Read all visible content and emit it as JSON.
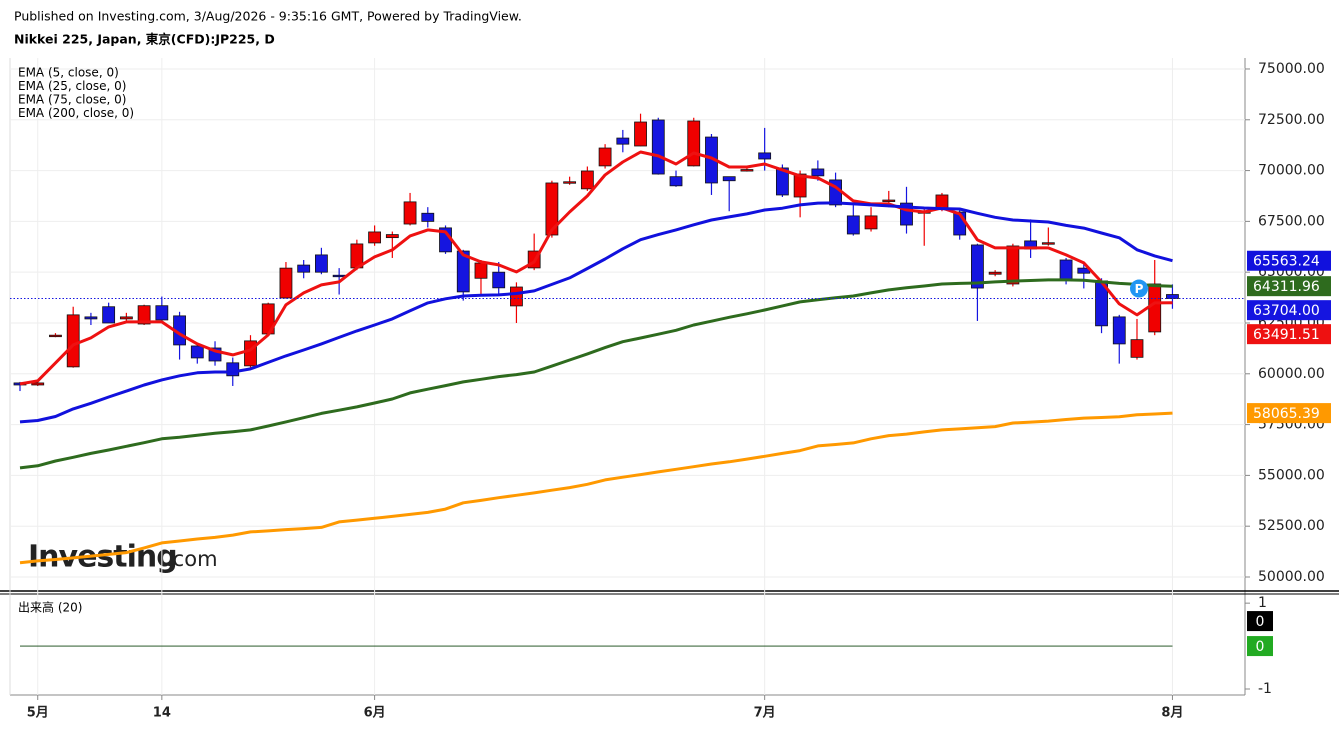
{
  "header": {
    "published": "Published on Investing.com, 3/Aug/2026 - 9:35:16 GMT, Powered by TradingView.",
    "symbol": "Nikkei 225, Japan, 東京(CFD):JP225, D"
  },
  "logo": {
    "brand": "Investing",
    "suffix": ".com"
  },
  "chart_data": {
    "type": "candlestick",
    "categories": [
      null,
      "5月",
      null,
      null,
      null,
      null,
      null,
      null,
      "14",
      null,
      null,
      null,
      null,
      null,
      null,
      null,
      null,
      null,
      null,
      null,
      "6月",
      null,
      null,
      null,
      null,
      null,
      null,
      null,
      null,
      null,
      null,
      null,
      null,
      null,
      null,
      null,
      null,
      null,
      null,
      null,
      null,
      null,
      "7月",
      null,
      null,
      null,
      null,
      null,
      null,
      null,
      null,
      null,
      null,
      null,
      null,
      null,
      null,
      null,
      null,
      null,
      null,
      null,
      null,
      null,
      null,
      "8月"
    ],
    "open": [
      59550,
      59450,
      61850,
      60340,
      62800,
      63300,
      62700,
      62450,
      63350,
      62850,
      61370,
      61270,
      60540,
      60390,
      61960,
      63730,
      65350,
      65850,
      64850,
      65210,
      66440,
      66700,
      67370,
      67900,
      67180,
      66040,
      64700,
      65000,
      63340,
      65210,
      66830,
      69380,
      69100,
      70230,
      71600,
      71210,
      72490,
      69700,
      70230,
      71650,
      69700,
      70050,
      70870,
      70130,
      68700,
      70080,
      69540,
      67770,
      67130,
      68500,
      68400,
      67900,
      68110,
      67960,
      66340,
      64900,
      64420,
      66540,
      66400,
      65600,
      65200,
      64570,
      62800,
      60810,
      62060,
      63900
    ],
    "high": [
      59600,
      59600,
      62000,
      63300,
      63000,
      63500,
      63000,
      63400,
      63800,
      63050,
      61500,
      61600,
      60800,
      61900,
      63500,
      65500,
      65600,
      66200,
      65200,
      66600,
      67300,
      67000,
      68900,
      68200,
      67300,
      66100,
      65600,
      65500,
      64500,
      66900,
      69500,
      69700,
      70200,
      71300,
      72000,
      72800,
      72600,
      70000,
      72600,
      71800,
      69700,
      70150,
      72100,
      70300,
      70000,
      70500,
      69900,
      68300,
      68200,
      69000,
      69200,
      68200,
      68900,
      68100,
      66400,
      65100,
      66400,
      67600,
      67200,
      65700,
      65500,
      64700,
      62900,
      62700,
      65600,
      64400
    ],
    "low": [
      59150,
      59400,
      61800,
      60300,
      62400,
      62500,
      62600,
      62400,
      62600,
      60700,
      60500,
      60400,
      59400,
      60300,
      61900,
      63700,
      64700,
      64900,
      63900,
      65100,
      66300,
      65700,
      67300,
      67200,
      65900,
      63600,
      63900,
      63900,
      62500,
      65100,
      66700,
      69300,
      69000,
      70100,
      70900,
      71200,
      69800,
      69200,
      70200,
      68800,
      68000,
      69950,
      70000,
      68700,
      67700,
      69500,
      68200,
      66800,
      67000,
      68200,
      66900,
      66300,
      68000,
      66600,
      62600,
      64800,
      64300,
      65700,
      66300,
      64400,
      64200,
      62000,
      60500,
      60700,
      61900,
      63200
    ],
    "close": [
      59450,
      59550,
      61900,
      62900,
      62700,
      62500,
      62800,
      63350,
      62650,
      61420,
      60780,
      60630,
      59900,
      61620,
      63440,
      65200,
      65000,
      65000,
      64800,
      66390,
      66980,
      66850,
      68460,
      67500,
      66000,
      64030,
      65450,
      64230,
      64270,
      66040,
      69390,
      69450,
      69980,
      71110,
      71300,
      72390,
      69830,
      69250,
      72440,
      69390,
      69500,
      70050,
      70570,
      68800,
      69830,
      69740,
      68310,
      66880,
      67770,
      68550,
      67320,
      68000,
      68800,
      66830,
      64220,
      65000,
      66290,
      66140,
      66450,
      64600,
      64950,
      62360,
      61470,
      61680,
      64420,
      63704
    ],
    "last_close_label": "63704.00",
    "last_close_color": "#1515e0",
    "up_color": "#f00000",
    "down_color": "#1515e0",
    "ylim": [
      49360,
      75540
    ],
    "yticks": [
      {
        "value": 50000,
        "label": "50000.00"
      },
      {
        "value": 52500,
        "label": "52500.00"
      },
      {
        "value": 55000,
        "label": "55000.00"
      },
      {
        "value": 57500,
        "label": "57500.00"
      },
      {
        "value": 60000,
        "label": "60000.00"
      },
      {
        "value": 62500,
        "label": "62500.00"
      },
      {
        "value": 65000,
        "label": "65000.00"
      },
      {
        "value": 67500,
        "label": "67500.00"
      },
      {
        "value": 70000,
        "label": "70000.00"
      },
      {
        "value": 72500,
        "label": "72500.00"
      },
      {
        "value": 75000,
        "label": "75000.00"
      }
    ],
    "grid": true,
    "legend": "top-left",
    "marker_label": "P",
    "series": [
      {
        "name": "EMA (5, close, 0)",
        "color": "#ee1111",
        "last_label": "63491.51",
        "values": [
          59502,
          59650,
          60535,
          61421,
          61765,
          62306,
          62552,
          62552,
          62552,
          61962,
          61470,
          61126,
          60929,
          61175,
          61913,
          63389,
          63979,
          64373,
          64520,
          65209,
          65750,
          66095,
          66784,
          67079,
          66980,
          65849,
          65504,
          65357,
          65012,
          65504,
          67079,
          67964,
          68752,
          69785,
          70424,
          70916,
          70720,
          70326,
          70867,
          70621,
          70178,
          70178,
          70326,
          70031,
          69736,
          69637,
          69194,
          68506,
          68358,
          68358,
          68063,
          67964,
          68161,
          67866,
          66587,
          66193,
          66193,
          66193,
          66193,
          65849,
          65455,
          64520,
          63438,
          62897,
          63487,
          63491.51
        ]
      },
      {
        "name": "EMA (25, close, 0)",
        "color": "#1111dd",
        "last_label": "65563.24",
        "values": [
          57630,
          57700,
          57900,
          58270,
          58550,
          58860,
          59150,
          59450,
          59700,
          59900,
          60050,
          60090,
          60090,
          60240,
          60560,
          60880,
          61170,
          61470,
          61790,
          62110,
          62400,
          62700,
          63100,
          63490,
          63690,
          63830,
          63860,
          63880,
          63950,
          64080,
          64400,
          64720,
          65180,
          65650,
          66150,
          66600,
          66850,
          67080,
          67330,
          67570,
          67720,
          67870,
          68060,
          68150,
          68310,
          68400,
          68410,
          68360,
          68310,
          68260,
          68210,
          68160,
          68130,
          68110,
          67900,
          67700,
          67570,
          67520,
          67470,
          67300,
          67170,
          66930,
          66690,
          66100,
          65800,
          65563.24
        ]
      },
      {
        "name": "EMA (75, close, 0)",
        "color": "#2e6b1e",
        "last_label": "64311.96",
        "values": [
          55370,
          55470,
          55710,
          55890,
          56080,
          56250,
          56430,
          56610,
          56800,
          56880,
          56980,
          57070,
          57150,
          57240,
          57430,
          57630,
          57840,
          58050,
          58210,
          58370,
          58560,
          58760,
          59060,
          59240,
          59420,
          59600,
          59730,
          59860,
          59960,
          60090,
          60380,
          60680,
          60980,
          61290,
          61580,
          61760,
          61950,
          62140,
          62400,
          62590,
          62780,
          62950,
          63140,
          63340,
          63540,
          63640,
          63740,
          63830,
          63980,
          64130,
          64230,
          64320,
          64420,
          64450,
          64470,
          64520,
          64560,
          64590,
          64620,
          64620,
          64600,
          64520,
          64450,
          64400,
          64340,
          64311.96
        ]
      },
      {
        "name": "EMA (200, close, 0)",
        "color": "#ff9900",
        "last_label": "58065.39",
        "values": [
          50700,
          50790,
          50860,
          50940,
          51030,
          51110,
          51200,
          51430,
          51680,
          51770,
          51870,
          51950,
          52060,
          52220,
          52270,
          52330,
          52380,
          52440,
          52710,
          52800,
          52890,
          52980,
          53080,
          53180,
          53340,
          53650,
          53770,
          53900,
          54020,
          54140,
          54270,
          54400,
          54560,
          54780,
          54910,
          55040,
          55170,
          55300,
          55430,
          55560,
          55670,
          55800,
          55940,
          56080,
          56220,
          56450,
          56520,
          56600,
          56800,
          56960,
          57030,
          57140,
          57240,
          57290,
          57340,
          57400,
          57580,
          57620,
          57670,
          57750,
          57820,
          57850,
          57890,
          57980,
          58020,
          58065.39
        ]
      }
    ],
    "volume": {
      "name": "出来高 (20)",
      "ylim": [
        -1.14,
        1.12
      ],
      "yticks": [
        1,
        -1
      ],
      "series": [
        {
          "color": "#000000",
          "last_label": "0",
          "values": [
            0,
            0,
            0,
            0,
            0,
            0,
            0,
            0,
            0,
            0,
            0,
            0,
            0,
            0,
            0,
            0,
            0,
            0,
            0,
            0,
            0,
            0,
            0,
            0,
            0,
            0,
            0,
            0,
            0,
            0,
            0,
            0,
            0,
            0,
            0,
            0,
            0,
            0,
            0,
            0,
            0,
            0,
            0,
            0,
            0,
            0,
            0,
            0,
            0,
            0,
            0,
            0,
            0,
            0,
            0,
            0,
            0,
            0,
            0,
            0,
            0,
            0,
            0,
            0,
            0,
            0
          ]
        },
        {
          "color": "#22aa22",
          "last_label": "0",
          "values": [
            0,
            0,
            0,
            0,
            0,
            0,
            0,
            0,
            0,
            0,
            0,
            0,
            0,
            0,
            0,
            0,
            0,
            0,
            0,
            0,
            0,
            0,
            0,
            0,
            0,
            0,
            0,
            0,
            0,
            0,
            0,
            0,
            0,
            0,
            0,
            0,
            0,
            0,
            0,
            0,
            0,
            0,
            0,
            0,
            0,
            0,
            0,
            0,
            0,
            0,
            0,
            0,
            0,
            0,
            0,
            0,
            0,
            0,
            0,
            0,
            0,
            0,
            0,
            0,
            0,
            0
          ]
        }
      ]
    }
  }
}
